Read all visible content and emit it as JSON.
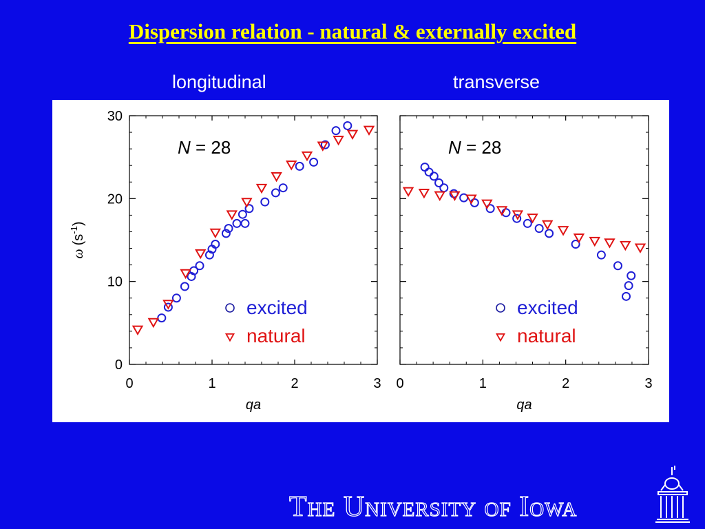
{
  "slide": {
    "title": "Dispersion relation - natural & externally excited",
    "footer": "The University of Iowa"
  },
  "colors": {
    "background": "#0a0ae6",
    "title": "#ffff00",
    "excited": "#1f1fd6",
    "natural": "#e01414"
  },
  "chart_data": [
    {
      "type": "scatter",
      "title": "longitudinal",
      "annotation": "N = 28",
      "xlabel": "qa",
      "ylabel": "ω (s-1)",
      "xlim": [
        0,
        3
      ],
      "ylim": [
        0,
        30
      ],
      "xticks": [
        "0",
        "1",
        "2",
        "3"
      ],
      "yticks": [
        "0",
        "10",
        "20",
        "30"
      ],
      "legend": {
        "placement": "bottom-right",
        "entries": [
          "excited",
          "natural"
        ]
      },
      "series": [
        {
          "name": "excited",
          "marker": "circle",
          "x": [
            0.39,
            0.47,
            0.57,
            0.67,
            0.75,
            0.78,
            0.85,
            0.97,
            1.0,
            1.04,
            1.17,
            1.2,
            1.3,
            1.37,
            1.4,
            1.45,
            1.64,
            1.77,
            1.86,
            2.06,
            2.23,
            2.37,
            2.5,
            2.64
          ],
          "y": [
            5.6,
            6.9,
            8.0,
            9.4,
            10.6,
            11.3,
            11.9,
            13.2,
            13.9,
            14.5,
            15.8,
            16.4,
            17.0,
            18.1,
            17.0,
            18.8,
            19.6,
            20.7,
            21.3,
            23.9,
            24.4,
            26.5,
            28.2,
            28.8
          ]
        },
        {
          "name": "natural",
          "marker": "triangle-down",
          "x": [
            0.1,
            0.29,
            0.47,
            0.68,
            0.86,
            1.04,
            1.24,
            1.42,
            1.6,
            1.78,
            1.96,
            2.15,
            2.34,
            2.53,
            2.7,
            2.9
          ],
          "y": [
            4.2,
            5.1,
            7.3,
            11.0,
            13.4,
            15.9,
            18.1,
            19.6,
            21.3,
            22.7,
            24.1,
            25.2,
            26.4,
            27.1,
            27.8,
            28.3
          ]
        }
      ]
    },
    {
      "type": "scatter",
      "title": "transverse",
      "annotation": "N = 28",
      "xlabel": "qa",
      "xlim": [
        0,
        3
      ],
      "ylim": [
        0,
        30
      ],
      "xticks": [
        "0",
        "1",
        "2",
        "3"
      ],
      "legend": {
        "placement": "bottom-right",
        "entries": [
          "excited",
          "natural"
        ]
      },
      "series": [
        {
          "name": "excited",
          "marker": "circle",
          "x": [
            0.3,
            0.35,
            0.41,
            0.47,
            0.53,
            0.65,
            0.77,
            0.9,
            1.09,
            1.28,
            1.41,
            1.54,
            1.68,
            1.8,
            2.12,
            2.43,
            2.63,
            2.73,
            2.76,
            2.79
          ],
          "y": [
            23.8,
            23.2,
            22.7,
            21.9,
            21.3,
            20.6,
            20.1,
            19.5,
            18.8,
            18.3,
            17.6,
            17.0,
            16.4,
            15.8,
            14.5,
            13.2,
            11.9,
            8.2,
            9.5,
            10.7
          ]
        },
        {
          "name": "natural",
          "marker": "triangle-down",
          "x": [
            0.1,
            0.29,
            0.48,
            0.66,
            0.86,
            1.05,
            1.23,
            1.42,
            1.6,
            1.78,
            1.97,
            2.16,
            2.35,
            2.53,
            2.72,
            2.9
          ],
          "y": [
            20.9,
            20.7,
            20.4,
            20.4,
            20.0,
            19.4,
            18.6,
            18.1,
            17.7,
            16.9,
            16.2,
            15.3,
            14.9,
            14.7,
            14.4,
            14.1
          ]
        }
      ]
    }
  ]
}
